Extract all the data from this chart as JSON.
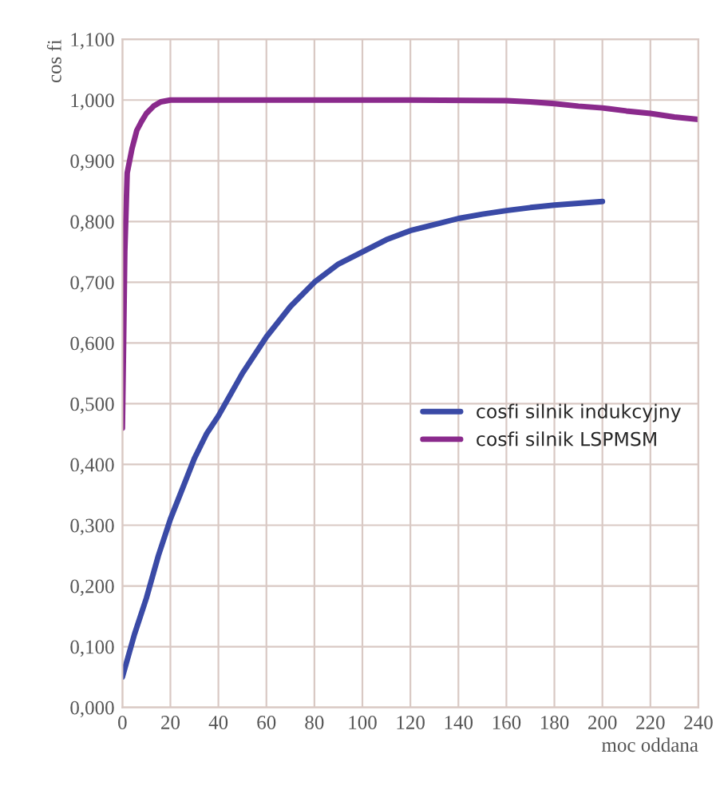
{
  "chart_data": {
    "type": "line",
    "xlabel": "moc oddana",
    "ylabel": "cos fi",
    "xlim": [
      0,
      240
    ],
    "xticks": [
      0,
      20,
      40,
      60,
      80,
      100,
      120,
      140,
      160,
      180,
      200,
      220,
      240
    ],
    "ylim": [
      0,
      1.1
    ],
    "yticks": [
      {
        "value": 0,
        "label": "0,000"
      },
      {
        "value": 0.1,
        "label": "0,100"
      },
      {
        "value": 0.2,
        "label": "0,200"
      },
      {
        "value": 0.3,
        "label": "0,300"
      },
      {
        "value": 0.4,
        "label": "0,400"
      },
      {
        "value": 0.5,
        "label": "0,500"
      },
      {
        "value": 0.6,
        "label": "0,600"
      },
      {
        "value": 0.7,
        "label": "0,700"
      },
      {
        "value": 0.8,
        "label": "0,800"
      },
      {
        "value": 0.9,
        "label": "0,900"
      },
      {
        "value": 1.0,
        "label": "1,000"
      },
      {
        "value": 1.1,
        "label": "1,100"
      }
    ],
    "grid": true,
    "legend": "right",
    "marker": "none",
    "line_style": "solid",
    "series": [
      {
        "name": "cosfi silnik indukcyjny",
        "color": "#3a4aa6",
        "x": [
          0,
          5,
          10,
          15,
          20,
          25,
          30,
          35,
          40,
          50,
          60,
          70,
          80,
          90,
          100,
          110,
          120,
          130,
          140,
          150,
          160,
          170,
          180,
          190,
          200
        ],
        "values": [
          0.05,
          0.12,
          0.18,
          0.25,
          0.31,
          0.36,
          0.41,
          0.45,
          0.48,
          0.55,
          0.61,
          0.66,
          0.7,
          0.73,
          0.75,
          0.77,
          0.785,
          0.795,
          0.805,
          0.812,
          0.818,
          0.823,
          0.827,
          0.83,
          0.833
        ]
      },
      {
        "name": "cosfi silnik LSPMSM",
        "color": "#8a2a8c",
        "x": [
          0,
          0.5,
          1,
          2,
          4,
          6,
          8,
          10,
          13,
          16,
          20,
          40,
          80,
          120,
          160,
          170,
          180,
          190,
          200,
          210,
          220,
          230,
          240
        ],
        "values": [
          0.46,
          0.6,
          0.75,
          0.88,
          0.92,
          0.95,
          0.965,
          0.978,
          0.99,
          0.997,
          1.0,
          1.0,
          1.0,
          1.0,
          0.999,
          0.997,
          0.994,
          0.99,
          0.987,
          0.982,
          0.978,
          0.972,
          0.968
        ]
      }
    ]
  }
}
